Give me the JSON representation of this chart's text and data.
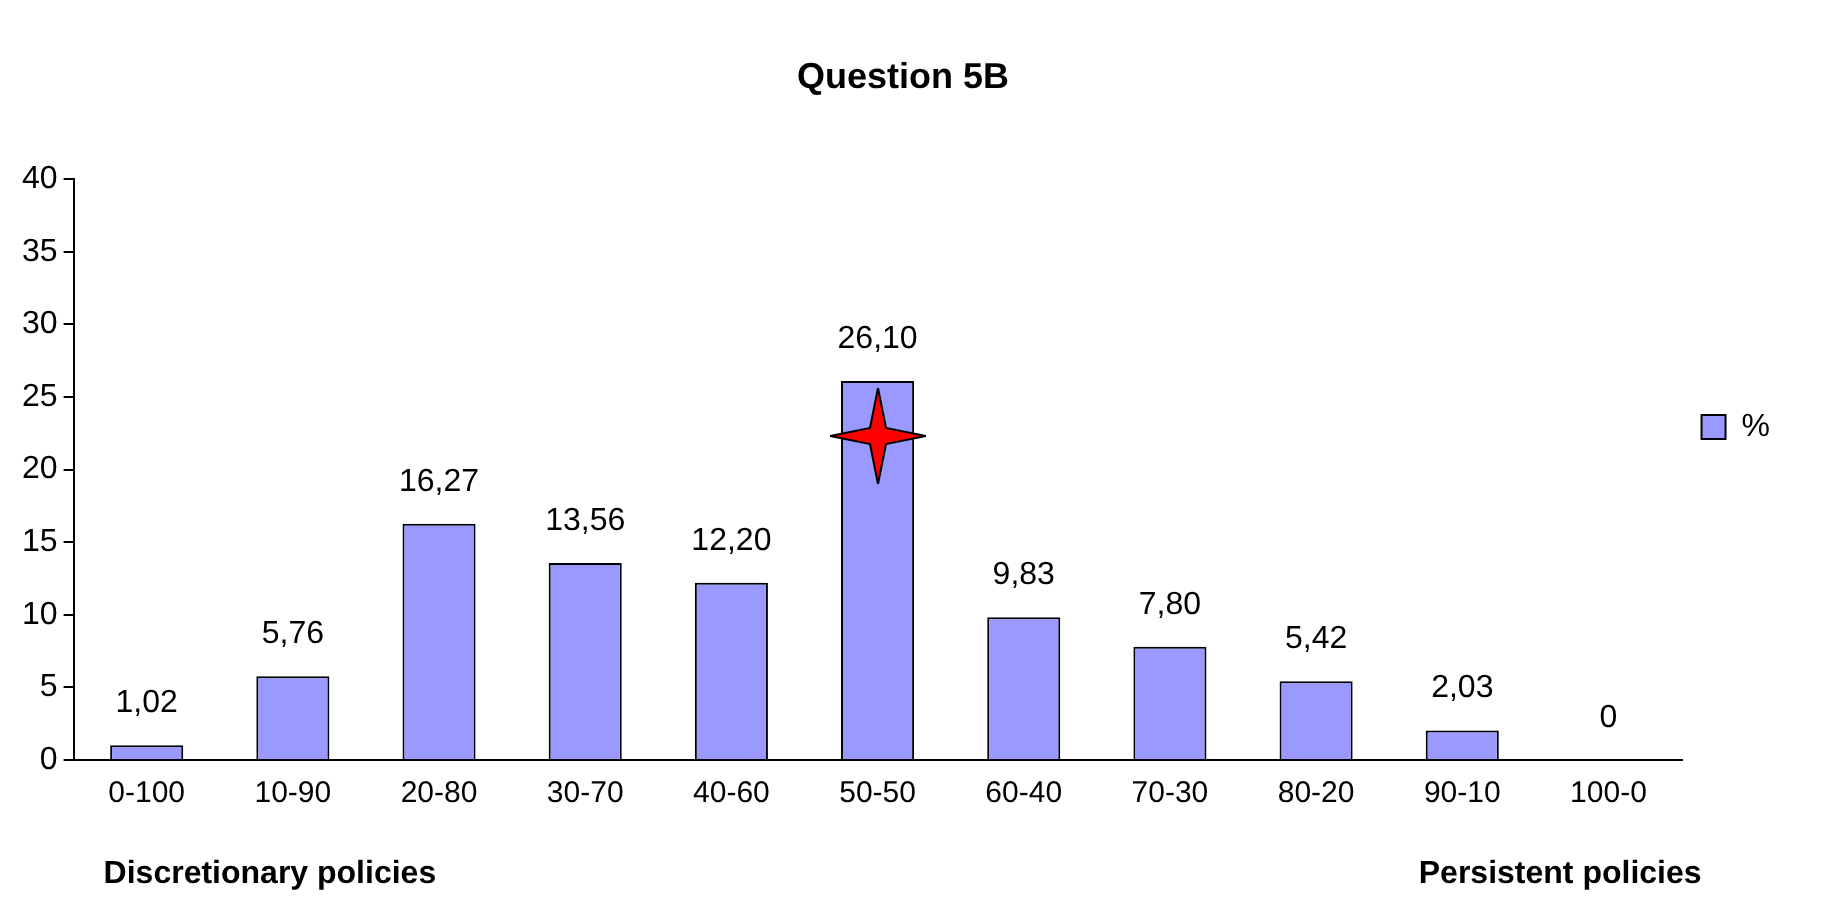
{
  "chart_data": {
    "type": "bar",
    "title": "Question 5B",
    "categories": [
      "0-100",
      "10-90",
      "20-80",
      "30-70",
      "40-60",
      "50-50",
      "60-40",
      "70-30",
      "80-20",
      "90-10",
      "100-0"
    ],
    "series": [
      {
        "name": "%",
        "color": "#9999ff",
        "values": [
          1.02,
          5.76,
          16.27,
          13.56,
          12.2,
          26.1,
          9.83,
          7.8,
          5.42,
          2.03,
          0
        ],
        "value_labels": [
          "1,02",
          "5,76",
          "16,27",
          "13,56",
          "12,20",
          "26,10",
          "9,83",
          "7,80",
          "5,42",
          "2,03",
          "0"
        ]
      }
    ],
    "ylim": [
      0,
      40
    ],
    "yticks": [
      0,
      5,
      10,
      15,
      20,
      25,
      30,
      35,
      40
    ],
    "grid": false,
    "legend": "right",
    "annotations": [
      "Discretionary policies",
      "Persistent policies"
    ]
  }
}
